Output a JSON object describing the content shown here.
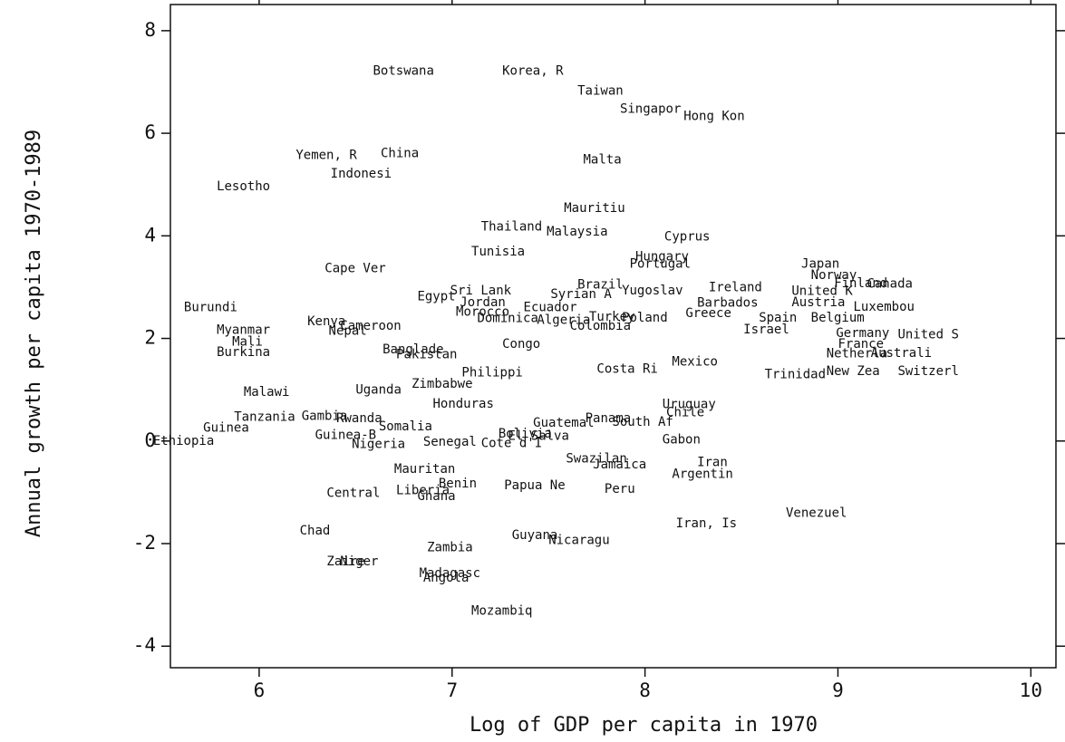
{
  "chart_data": {
    "type": "scatter",
    "xlabel": "Log of GDP per capita in 1970",
    "ylabel": "Annual growth per capita 1970-1989",
    "xlim": [
      5.54,
      10.13
    ],
    "ylim": [
      -4.42,
      8.51
    ],
    "xticks": [
      6,
      7,
      8,
      9,
      10
    ],
    "yticks": [
      -4,
      -2,
      0,
      2,
      4,
      6,
      8
    ],
    "color": "#111111",
    "labels": [
      "Botswana",
      "Korea, R",
      "Taiwan",
      "Singapor",
      "Hong Kon",
      "Yemen, R",
      "China",
      "Indonesi",
      "Lesotho",
      "Malta",
      "Mauritiu",
      "Thailand",
      "Malaysia",
      "Cyprus",
      "Tunisia",
      "Hungary",
      "Portugal",
      "Cape Ver",
      "Japan",
      "Norway",
      "Finland",
      "Canada",
      "United K",
      "Austria",
      "Luxembou",
      "Brazil",
      "Ireland",
      "Yugoslav",
      "Sri Lank",
      "Syrian A",
      "Egypt",
      "Jordan",
      "Ecuador",
      "Barbados",
      "Burundi",
      "Morocco",
      "Dominica",
      "Turkey",
      "Poland",
      "Greece",
      "Spain",
      "Belgium",
      "Algeria",
      "Colombia",
      "Kenya",
      "Cameroon",
      "Nepal",
      "Myanmar",
      "Israel",
      "Germany",
      "United S",
      "France",
      "Netherla",
      "Australi",
      "Mali",
      "Congo",
      "Burkina",
      "Banglade",
      "Pakistan",
      "Philippi",
      "Costa Ri",
      "Mexico",
      "Trinidad",
      "New Zea",
      "Switzerl",
      "Zimbabwe",
      "Malawi",
      "Uganda",
      "Honduras",
      "Uruguay",
      "Chile",
      "Tanzania",
      "Gambia",
      "Rwanda",
      "Somalia",
      "Panama",
      "South Af",
      "Guatemal",
      "Guinea",
      "Guinea-B",
      "Ethiopia",
      "Nigeria",
      "Senegal",
      "Cote d'I",
      "Bolivia",
      "El Salva",
      "Gabon",
      "Swazilan",
      "Jamaica",
      "Iran",
      "Argentin",
      "Mauritan",
      "Benin",
      "Papua Ne",
      "Peru",
      "Central",
      "Liberia",
      "Ghana",
      "Venezuel",
      "Iran, Is",
      "Chad",
      "Guyana",
      "Nicaragu",
      "Zambia",
      "Zaire",
      "Niger",
      "Madagasc",
      "Angola",
      "Mozambiq"
    ],
    "x": [
      6.59,
      7.26,
      7.65,
      7.87,
      8.2,
      6.19,
      6.63,
      6.37,
      5.78,
      7.68,
      7.58,
      7.15,
      7.49,
      8.1,
      7.1,
      7.95,
      7.92,
      6.34,
      8.81,
      8.86,
      8.98,
      9.15,
      8.76,
      8.76,
      9.08,
      7.65,
      8.33,
      7.88,
      6.99,
      7.51,
      6.82,
      7.04,
      7.37,
      8.27,
      5.61,
      7.02,
      7.13,
      7.71,
      7.88,
      8.21,
      8.59,
      8.86,
      7.44,
      7.61,
      6.25,
      6.42,
      6.36,
      5.78,
      8.51,
      8.99,
      9.31,
      9.0,
      8.94,
      9.17,
      5.86,
      7.26,
      5.78,
      6.64,
      6.71,
      7.05,
      7.75,
      8.14,
      8.62,
      8.94,
      9.31,
      6.79,
      5.92,
      6.5,
      6.9,
      8.09,
      8.11,
      5.87,
      6.22,
      6.4,
      6.62,
      7.69,
      7.83,
      7.42,
      5.71,
      6.29,
      5.45,
      6.48,
      6.85,
      7.15,
      7.24,
      7.29,
      8.09,
      7.59,
      7.73,
      8.27,
      8.14,
      6.7,
      6.93,
      7.27,
      7.79,
      6.35,
      6.71,
      6.82,
      8.73,
      8.16,
      6.21,
      7.31,
      7.5,
      6.87,
      6.35,
      6.42,
      6.83,
      6.85,
      7.1
    ],
    "values": [
      7.21,
      7.21,
      6.82,
      6.47,
      6.33,
      5.57,
      5.6,
      5.21,
      4.96,
      5.48,
      4.54,
      4.17,
      4.08,
      3.98,
      3.69,
      3.59,
      3.45,
      3.36,
      3.45,
      3.23,
      3.07,
      3.06,
      2.92,
      2.7,
      2.61,
      3.04,
      2.99,
      2.93,
      2.93,
      2.86,
      2.81,
      2.7,
      2.6,
      2.69,
      2.6,
      2.51,
      2.39,
      2.42,
      2.4,
      2.49,
      2.4,
      2.4,
      2.35,
      2.24,
      2.33,
      2.24,
      2.14,
      2.16,
      2.17,
      2.1,
      2.07,
      1.89,
      1.7,
      1.71,
      1.93,
      1.89,
      1.73,
      1.78,
      1.68,
      1.33,
      1.4,
      1.54,
      1.29,
      1.36,
      1.36,
      1.11,
      0.95,
      0.99,
      0.72,
      0.71,
      0.55,
      0.46,
      0.48,
      0.44,
      0.28,
      0.44,
      0.37,
      0.35,
      0.25,
      0.11,
      0.0,
      -0.07,
      -0.02,
      -0.05,
      0.14,
      0.09,
      0.02,
      -0.35,
      -0.46,
      -0.42,
      -0.65,
      -0.55,
      -0.83,
      -0.87,
      -0.94,
      -1.02,
      -0.97,
      -1.08,
      -1.41,
      -1.61,
      -1.75,
      -1.84,
      -1.94,
      -2.08,
      -2.35,
      -2.35,
      -2.58,
      -2.67,
      -3.32
    ]
  }
}
